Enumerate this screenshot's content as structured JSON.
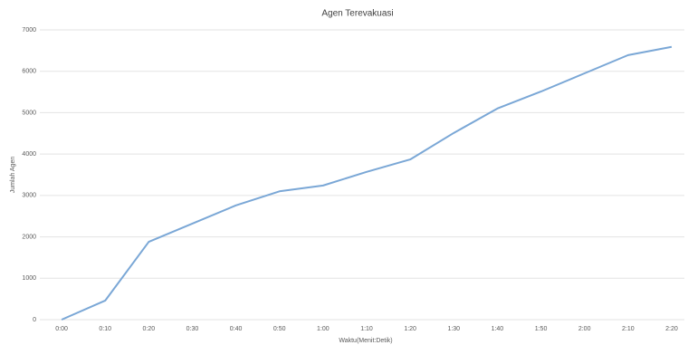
{
  "chart_data": {
    "type": "line",
    "title": "Agen Terevakuasi",
    "x_label": "Waktu(Menit:Detik)",
    "y_label": "Jumlah Agen",
    "categories": [
      "0:00",
      "0:10",
      "0:20",
      "0:30",
      "0:40",
      "0:50",
      "1:00",
      "1:10",
      "1:20",
      "1:30",
      "1:40",
      "1:50",
      "2:00",
      "2:10",
      "2:20"
    ],
    "values": [
      0,
      460,
      1880,
      2320,
      2760,
      3100,
      3240,
      3570,
      3870,
      4510,
      5100,
      5510,
      5950,
      6390,
      6590
    ],
    "color": "#7aa7d6",
    "ylim": [
      0,
      7000
    ],
    "yticks": [
      0,
      1000,
      2000,
      3000,
      4000,
      5000,
      6000,
      7000
    ],
    "grid": true
  }
}
